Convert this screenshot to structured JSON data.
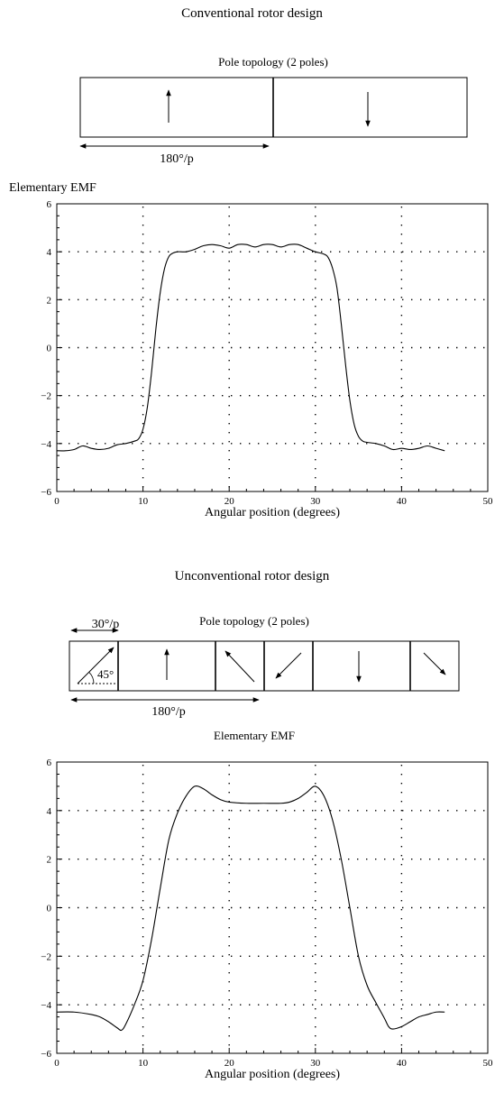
{
  "sections": [
    {
      "heading": "Conventional rotor design",
      "topology_title": "Pole topology (2 poles)",
      "dimension_label": "180°/p",
      "magnet_blocks": [
        {
          "arrow_angle_deg": 90
        },
        {
          "arrow_angle_deg": 270
        }
      ]
    },
    {
      "heading": "Unconventional rotor design",
      "topology_title": "Pole topology (2 poles)",
      "dimension_label": "180°/p",
      "segment_label": "30°/p",
      "angle_label": "45°",
      "magnet_blocks": [
        {
          "arrow_angle_deg": 45
        },
        {
          "arrow_angle_deg": 90
        },
        {
          "arrow_angle_deg": 135
        },
        {
          "arrow_angle_deg": 225
        },
        {
          "arrow_angle_deg": 270
        },
        {
          "arrow_angle_deg": 315
        }
      ]
    }
  ],
  "chart_data": [
    {
      "type": "line",
      "title": "Elementary EMF",
      "xlabel": "Angular position (degrees)",
      "ylabel": "",
      "xlim": [
        0,
        50
      ],
      "ylim": [
        -6,
        6
      ],
      "xticks": [
        0,
        10,
        20,
        30,
        40,
        50
      ],
      "yticks": [
        -6,
        -4,
        -2,
        0,
        2,
        4,
        6
      ],
      "grid": "dotted",
      "series": [
        {
          "x": [
            0,
            1,
            2,
            3,
            4,
            5,
            6,
            7,
            8,
            9,
            9.5,
            10,
            10.5,
            11,
            11.5,
            12,
            12.5,
            13,
            13.5,
            14,
            15,
            16,
            17,
            18,
            19,
            20,
            21,
            22,
            23,
            24,
            25,
            26,
            27,
            28,
            29,
            30,
            31,
            31.5,
            32,
            32.5,
            33,
            33.5,
            34,
            34.5,
            35,
            35.5,
            36,
            37,
            38,
            39,
            40,
            41,
            42,
            43,
            44,
            45
          ],
          "y": [
            -4.3,
            -4.3,
            -4.25,
            -4.1,
            -4.2,
            -4.25,
            -4.2,
            -4.05,
            -4.0,
            -3.9,
            -3.8,
            -3.4,
            -2.5,
            -1.0,
            0.8,
            2.3,
            3.3,
            3.8,
            3.95,
            4.0,
            4.0,
            4.1,
            4.25,
            4.3,
            4.25,
            4.15,
            4.3,
            4.3,
            4.2,
            4.3,
            4.3,
            4.2,
            4.3,
            4.3,
            4.15,
            4.0,
            3.9,
            3.75,
            3.3,
            2.5,
            1.0,
            -0.7,
            -2.2,
            -3.2,
            -3.7,
            -3.9,
            -3.95,
            -4.0,
            -4.1,
            -4.25,
            -4.2,
            -4.25,
            -4.2,
            -4.1,
            -4.2,
            -4.3
          ]
        }
      ]
    },
    {
      "type": "line",
      "title": "Elementary EMF",
      "xlabel": "Angular position (degrees)",
      "ylabel": "",
      "xlim": [
        0,
        50
      ],
      "ylim": [
        -6,
        6
      ],
      "xticks": [
        0,
        10,
        20,
        30,
        40,
        50
      ],
      "yticks": [
        -6,
        -4,
        -2,
        0,
        2,
        4,
        6
      ],
      "grid": "dotted",
      "series": [
        {
          "x": [
            0,
            2,
            4,
            5,
            6,
            7,
            7.5,
            8,
            9,
            10,
            11,
            12,
            13,
            14,
            15,
            16,
            17,
            18,
            19,
            20,
            22,
            24,
            26,
            27,
            28,
            29,
            30,
            31,
            32,
            33,
            34,
            35,
            36,
            37,
            38,
            38.5,
            39,
            40,
            41,
            42,
            43,
            44,
            45
          ],
          "y": [
            -4.3,
            -4.3,
            -4.4,
            -4.5,
            -4.7,
            -4.95,
            -5.05,
            -4.8,
            -4.0,
            -3.0,
            -1.3,
            0.8,
            2.8,
            3.9,
            4.6,
            5.0,
            4.9,
            4.65,
            4.45,
            4.35,
            4.3,
            4.3,
            4.3,
            4.35,
            4.5,
            4.75,
            5.0,
            4.6,
            3.6,
            2.0,
            0.0,
            -2.0,
            -3.2,
            -3.9,
            -4.55,
            -4.9,
            -5.0,
            -4.9,
            -4.7,
            -4.5,
            -4.4,
            -4.3,
            -4.3
          ]
        }
      ]
    }
  ]
}
